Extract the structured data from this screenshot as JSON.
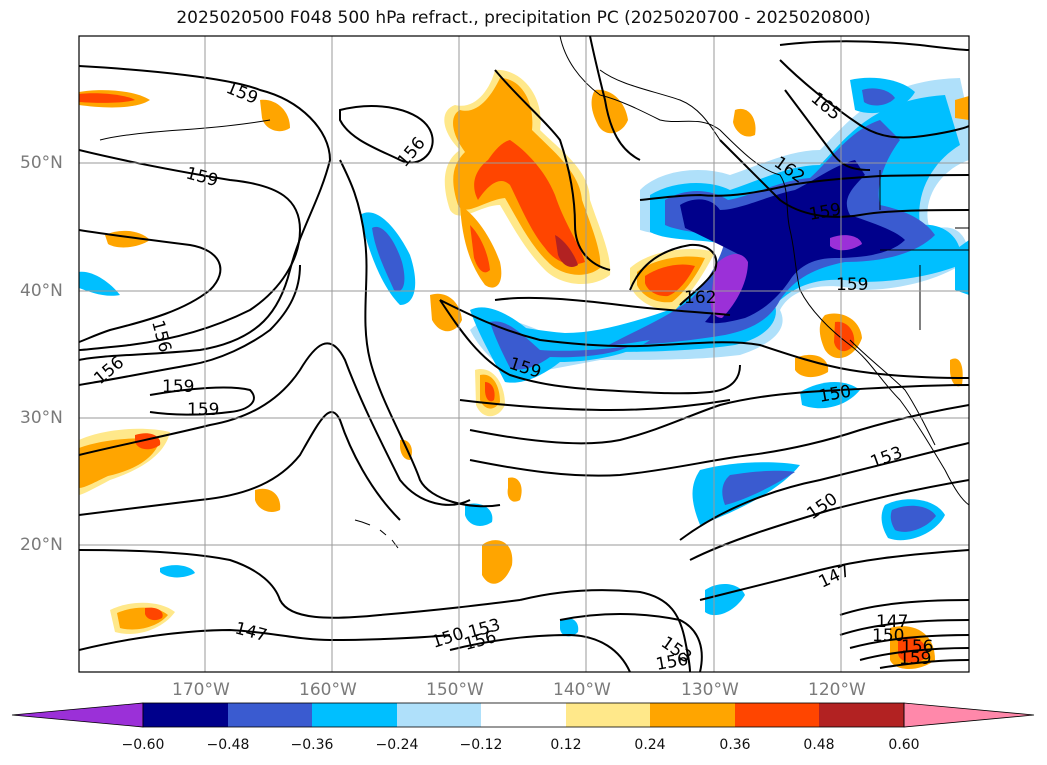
{
  "title": "2025020500 F048 500 hPa refract., precipitation PC (2025020700 - 2025020800)",
  "lat_labels": [
    "50°N",
    "40°N",
    "30°N",
    "20°N"
  ],
  "lon_labels": [
    "170°W",
    "160°W",
    "150°W",
    "140°W",
    "130°W",
    "120°W"
  ],
  "contour_labels": [
    "159",
    "156",
    "159",
    "156",
    "156",
    "159",
    "159",
    "159",
    "162",
    "159",
    "165",
    "162",
    "159",
    "150",
    "153",
    "150",
    "147",
    "147",
    "147",
    "150",
    "153",
    "150",
    "153",
    "156",
    "156",
    "159",
    "156"
  ],
  "colorbar": {
    "ticks": [
      "−0.60",
      "−0.48",
      "−0.36",
      "−0.24",
      "−0.12",
      "0.12",
      "0.24",
      "0.36",
      "0.48",
      "0.60"
    ],
    "colors": [
      "#9b30d8",
      "#00008b",
      "#3a5bd0",
      "#00bfff",
      "#afe0fa",
      "#ffffff",
      "#ffe88a",
      "#ffa500",
      "#ff4500",
      "#b22222",
      "#ff88aa"
    ]
  },
  "colors": {
    "purple": "#9b30d8",
    "navy": "#00008b",
    "blue": "#3a5bd0",
    "cyan": "#00bfff",
    "lightblue": "#afe0fa",
    "lightyellow": "#ffe88a",
    "orange": "#ffa500",
    "redorange": "#ff4500",
    "darkred": "#b22222",
    "pink": "#ff88aa"
  }
}
